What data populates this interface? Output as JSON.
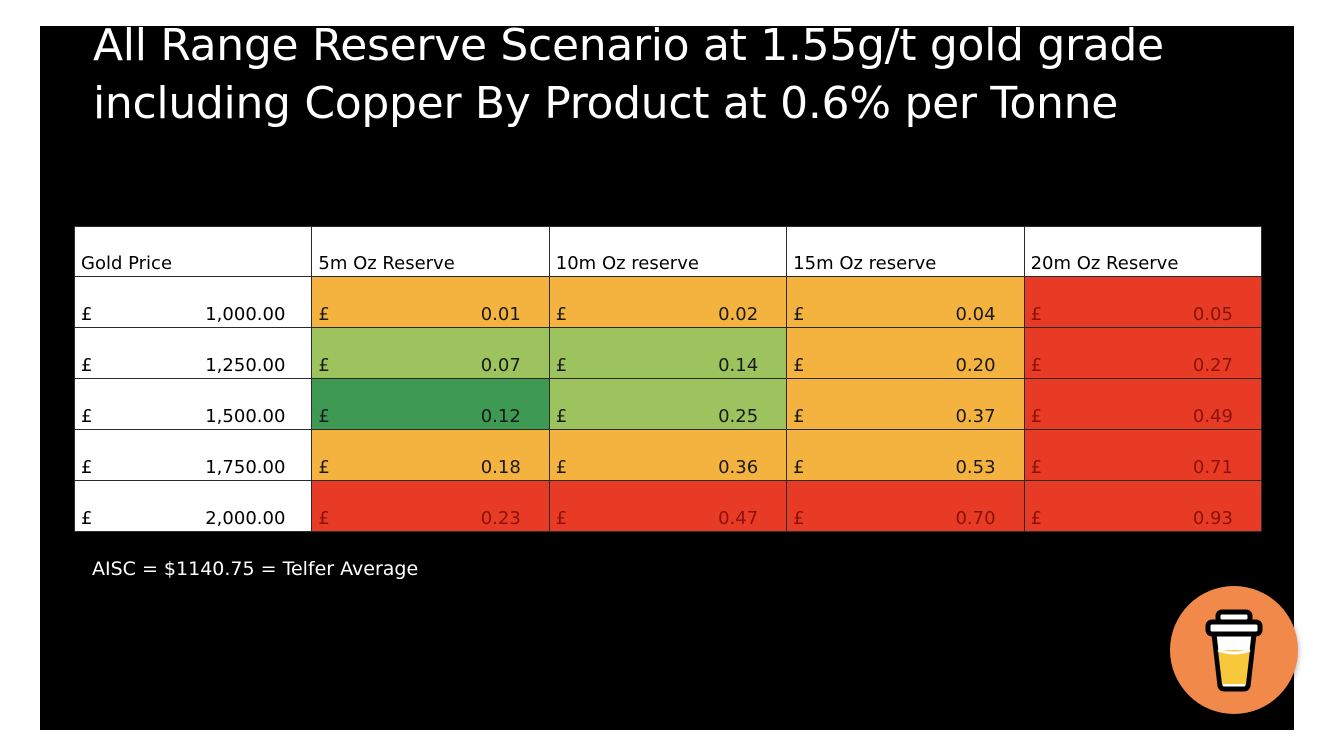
{
  "slide": {
    "title_lines": [
      "All Range Reserve Scenario at 1.55g/t gold grade",
      "including Copper By Product at 0.6% per Tonne"
    ],
    "note": "AISC = $1140.75 = Telfer Average"
  },
  "table": {
    "headers": [
      "Gold Price",
      "5m Oz Reserve",
      "10m Oz reserve",
      "15m Oz reserve",
      "20m Oz Reserve"
    ],
    "currency": "£",
    "rows": [
      {
        "price": "1,000.00",
        "values": [
          "0.01",
          "0.02",
          "0.04",
          "0.05"
        ],
        "colors": [
          "orange",
          "orange",
          "orange",
          "red"
        ]
      },
      {
        "price": "1,250.00",
        "values": [
          "0.07",
          "0.14",
          "0.20",
          "0.27"
        ],
        "colors": [
          "lightgreen",
          "lightgreen",
          "orange",
          "red"
        ]
      },
      {
        "price": "1,500.00",
        "values": [
          "0.12",
          "0.25",
          "0.37",
          "0.49"
        ],
        "colors": [
          "darkgreen",
          "lightgreen",
          "orange",
          "red"
        ]
      },
      {
        "price": "1,750.00",
        "values": [
          "0.18",
          "0.36",
          "0.53",
          "0.71"
        ],
        "colors": [
          "orange",
          "orange",
          "orange",
          "red"
        ]
      },
      {
        "price": "2,000.00",
        "values": [
          "0.23",
          "0.47",
          "0.70",
          "0.93"
        ],
        "colors": [
          "red",
          "red",
          "red",
          "red"
        ]
      }
    ]
  },
  "palette": {
    "orange": "#f4b33f",
    "lightgreen": "#9dc35e",
    "darkgreen": "#3e9a52",
    "red": "#e83b26",
    "coffee_button": "#f0894a"
  },
  "overlay": {
    "icon": "coffee-cup-icon"
  }
}
